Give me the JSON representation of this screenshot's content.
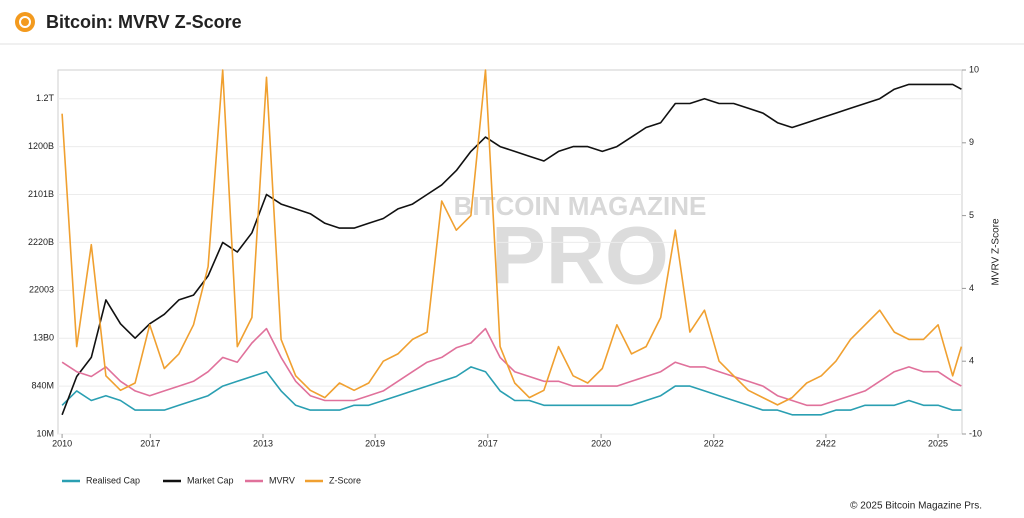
{
  "chart_data": {
    "type": "line",
    "title": "Bitcoin: MVRV Z-Score",
    "watermark": [
      "BITCOIN MAGAZINE",
      "PRO"
    ],
    "y2label": "MVRV Z-Score",
    "footer": "© 2025 Bitcoin Magazine Prs.",
    "grid": true,
    "legend": "bottom",
    "x": [
      2010,
      2010.25,
      2010.5,
      2010.75,
      2011,
      2011.25,
      2011.5,
      2011.75,
      2012,
      2012.25,
      2012.5,
      2012.75,
      2013,
      2013.25,
      2013.5,
      2013.75,
      2014,
      2014.25,
      2014.5,
      2014.75,
      2015,
      2015.25,
      2015.5,
      2015.75,
      2016,
      2016.25,
      2016.5,
      2016.75,
      2017,
      2017.25,
      2017.5,
      2017.75,
      2018,
      2018.25,
      2018.5,
      2018.75,
      2019,
      2019.25,
      2019.5,
      2019.75,
      2020,
      2020.25,
      2020.5,
      2020.75,
      2021,
      2021.25,
      2021.5,
      2021.75,
      2022,
      2022.25,
      2022.5,
      2022.75,
      2023,
      2023.25,
      2023.5,
      2023.75,
      2024,
      2024.25,
      2024.5,
      2024.75,
      2025,
      2025.25,
      2025.4
    ],
    "xlim": [
      2009.93,
      2025.41
    ],
    "xticks": [
      2010,
      {
        "value": 2011.51,
        "label": "2017"
      },
      {
        "value": 2013.44,
        "label": "2013"
      },
      {
        "value": 2015.36,
        "label": "2019"
      },
      {
        "value": 2017.29,
        "label": "2017"
      },
      {
        "value": 2019.23,
        "label": "2020"
      },
      {
        "value": 2021.16,
        "label": "2022"
      },
      {
        "value": 2023.08,
        "label": "2422"
      },
      2025
    ],
    "ylim": [
      0,
      7.6
    ],
    "yticks": [
      {
        "value": 0,
        "label": "10M"
      },
      {
        "value": 1,
        "label": "840M"
      },
      {
        "value": 2,
        "label": "13B0"
      },
      {
        "value": 3,
        "label": "22003"
      },
      {
        "value": 4,
        "label": "2220B"
      },
      {
        "value": 5,
        "label": "2101B"
      },
      {
        "value": 6,
        "label": "1200B"
      },
      {
        "value": 7,
        "label": "1.2T"
      }
    ],
    "y2lim": [
      0,
      5
    ],
    "y2ticks": [
      {
        "value": 0,
        "label": "-10"
      },
      {
        "value": 1,
        "label": "4"
      },
      {
        "value": 2,
        "label": "4"
      },
      {
        "value": 3,
        "label": "5"
      },
      {
        "value": 4,
        "label": "9"
      },
      {
        "value": 5,
        "label": "10"
      }
    ],
    "series": [
      {
        "name": "Realised Cap",
        "color": "#2a9fb2",
        "values": [
          0.6,
          0.9,
          0.7,
          0.8,
          0.7,
          0.5,
          0.5,
          0.5,
          0.6,
          0.7,
          0.8,
          1.0,
          1.1,
          1.2,
          1.3,
          0.9,
          0.6,
          0.5,
          0.5,
          0.5,
          0.6,
          0.6,
          0.7,
          0.8,
          0.9,
          1.0,
          1.1,
          1.2,
          1.4,
          1.3,
          0.9,
          0.7,
          0.7,
          0.6,
          0.6,
          0.6,
          0.6,
          0.6,
          0.6,
          0.6,
          0.7,
          0.8,
          1.0,
          1.0,
          0.9,
          0.8,
          0.7,
          0.6,
          0.5,
          0.5,
          0.4,
          0.4,
          0.4,
          0.5,
          0.5,
          0.6,
          0.6,
          0.6,
          0.7,
          0.6,
          0.6,
          0.5,
          0.5
        ]
      },
      {
        "name": "Market Cap",
        "color": "#111111",
        "values": [
          0.4,
          1.2,
          1.6,
          2.8,
          2.3,
          2.0,
          2.3,
          2.5,
          2.8,
          2.9,
          3.3,
          4.0,
          3.8,
          4.2,
          5.0,
          4.8,
          4.7,
          4.6,
          4.4,
          4.3,
          4.3,
          4.4,
          4.5,
          4.7,
          4.8,
          5.0,
          5.2,
          5.5,
          5.9,
          6.2,
          6.0,
          5.9,
          5.8,
          5.7,
          5.9,
          6.0,
          6.0,
          5.9,
          6.0,
          6.2,
          6.4,
          6.5,
          6.9,
          6.9,
          7.0,
          6.9,
          6.9,
          6.8,
          6.7,
          6.5,
          6.4,
          6.5,
          6.6,
          6.7,
          6.8,
          6.9,
          7.0,
          7.2,
          7.3,
          7.3,
          7.3,
          7.3,
          7.2
        ]
      },
      {
        "name": "MVRV",
        "color": "#e0719b",
        "values": [
          1.5,
          1.3,
          1.2,
          1.4,
          1.1,
          0.9,
          0.8,
          0.9,
          1.0,
          1.1,
          1.3,
          1.6,
          1.5,
          1.9,
          2.2,
          1.6,
          1.1,
          0.8,
          0.7,
          0.7,
          0.7,
          0.8,
          0.9,
          1.1,
          1.3,
          1.5,
          1.6,
          1.8,
          1.9,
          2.2,
          1.6,
          1.3,
          1.2,
          1.1,
          1.1,
          1.0,
          1.0,
          1.0,
          1.0,
          1.1,
          1.2,
          1.3,
          1.5,
          1.4,
          1.4,
          1.3,
          1.2,
          1.1,
          1.0,
          0.8,
          0.7,
          0.6,
          0.6,
          0.7,
          0.8,
          0.9,
          1.1,
          1.3,
          1.4,
          1.3,
          1.3,
          1.1,
          1.0
        ]
      },
      {
        "name": "Z-Score",
        "color": "#f0a030",
        "axis": "y2",
        "values": [
          4.4,
          1.2,
          2.6,
          0.8,
          0.6,
          0.7,
          1.5,
          0.9,
          1.1,
          1.5,
          2.3,
          5.0,
          1.2,
          1.6,
          4.9,
          1.3,
          0.8,
          0.6,
          0.5,
          0.7,
          0.6,
          0.7,
          1.0,
          1.1,
          1.3,
          1.4,
          3.2,
          2.8,
          3.0,
          5.0,
          1.2,
          0.7,
          0.5,
          0.6,
          1.2,
          0.8,
          0.7,
          0.9,
          1.5,
          1.1,
          1.2,
          1.6,
          2.8,
          1.4,
          1.7,
          1.0,
          0.8,
          0.6,
          0.5,
          0.4,
          0.5,
          0.7,
          0.8,
          1.0,
          1.3,
          1.5,
          1.7,
          1.4,
          1.3,
          1.3,
          1.5,
          0.8,
          1.2
        ]
      }
    ]
  }
}
